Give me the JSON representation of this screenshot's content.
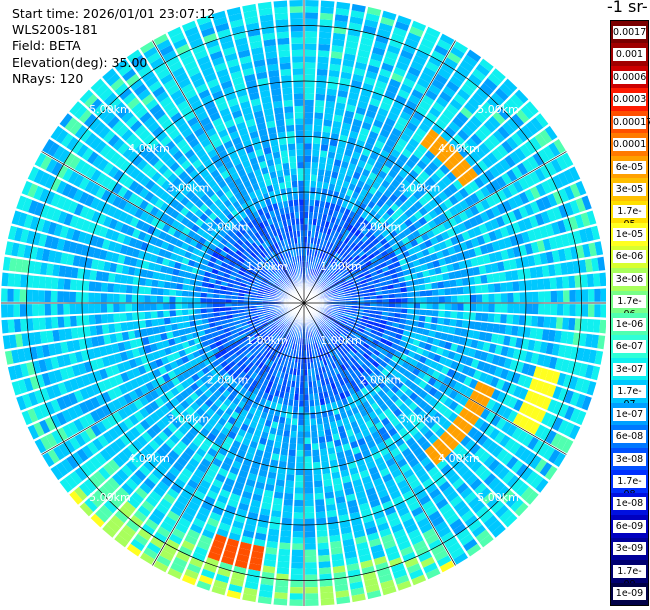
{
  "header": {
    "start_time": "Start time: 2026/01/01 23:07:12",
    "instrument": "WLS200s-181",
    "field": "Field: BETA",
    "elevation": "Elevation(deg): 35.00",
    "nrays": "NRays: 120"
  },
  "unit_title": "-1 sr-",
  "range_rings": [
    "1.00km",
    "2.00km",
    "3.00km",
    "4.00km",
    "5.00km"
  ],
  "colorbar": {
    "labels": [
      "0.0017",
      "0.001",
      "0.0006",
      "0.0003",
      "0.00017",
      "0.0001",
      "6e-05",
      "3e-05",
      "1.7e-05",
      "1e-05",
      "6e-06",
      "3e-06",
      "1.7e-06",
      "1e-06",
      "6e-07",
      "3e-07",
      "1.7e-07",
      "1e-07",
      "6e-08",
      "3e-08",
      "1.7e-08",
      "1e-08",
      "6e-09",
      "3e-09",
      "1.7e-09",
      "1e-09"
    ],
    "colors": [
      "#7a0000",
      "#a00000",
      "#cc0000",
      "#ff1a00",
      "#ff5000",
      "#ff7a00",
      "#ffa000",
      "#ffbf00",
      "#ffe000",
      "#ffff20",
      "#d8ff30",
      "#a8ff5c",
      "#78ff88",
      "#50ffb0",
      "#30ffd8",
      "#10f0f0",
      "#00c8ff",
      "#00a0ff",
      "#0078ff",
      "#0050ff",
      "#0030ff",
      "#0010e0",
      "#0000c0",
      "#00009a",
      "#000070",
      "#000048"
    ]
  }
}
